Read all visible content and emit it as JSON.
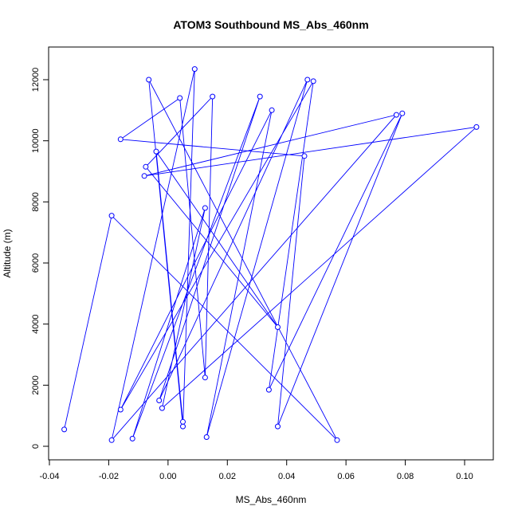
{
  "chart_data": {
    "type": "line",
    "title": "ATOM3 Southbound MS_Abs_460nm",
    "xlabel": "MS_Abs_460nm",
    "ylabel": "Altitude (m)",
    "xlim": [
      -0.04,
      0.1
    ],
    "ylim": [
      0,
      12000
    ],
    "x_ticks": [
      -0.04,
      -0.02,
      0.0,
      0.02,
      0.04,
      0.06,
      0.08,
      0.1
    ],
    "x_tick_labels": [
      "-0.04",
      "-0.02",
      "0.00",
      "0.02",
      "0.04",
      "0.06",
      "0.08",
      "0.10"
    ],
    "y_ticks": [
      0,
      2000,
      4000,
      6000,
      8000,
      10000,
      12000
    ],
    "y_tick_labels": [
      "0",
      "2000",
      "4000",
      "6000",
      "8000",
      "10000",
      "12000"
    ],
    "grid": false,
    "legend": "none",
    "series_color": "#0000ff",
    "marker": "open-circle",
    "points": [
      {
        "x": -0.035,
        "y": 550
      },
      {
        "x": -0.019,
        "y": 7550
      },
      {
        "x": 0.057,
        "y": 200
      },
      {
        "x": -0.0065,
        "y": 12000
      },
      {
        "x": 0.005,
        "y": 650
      },
      {
        "x": 0.009,
        "y": 12350
      },
      {
        "x": -0.019,
        "y": 200
      },
      {
        "x": 0.077,
        "y": 10850
      },
      {
        "x": -0.008,
        "y": 8850
      },
      {
        "x": 0.104,
        "y": 10450
      },
      {
        "x": -0.002,
        "y": 1250
      },
      {
        "x": 0.0125,
        "y": 7800
      },
      {
        "x": -0.012,
        "y": 250
      },
      {
        "x": 0.031,
        "y": 11450
      },
      {
        "x": -0.003,
        "y": 1500
      },
      {
        "x": 0.047,
        "y": 12000
      },
      {
        "x": 0.013,
        "y": 300
      },
      {
        "x": 0.035,
        "y": 11000
      },
      {
        "x": -0.016,
        "y": 1200
      },
      {
        "x": 0.049,
        "y": 11950
      },
      {
        "x": 0.034,
        "y": 1850
      },
      {
        "x": 0.079,
        "y": 10900
      },
      {
        "x": 0.037,
        "y": 650
      },
      {
        "x": 0.046,
        "y": 9500
      },
      {
        "x": -0.016,
        "y": 10050
      },
      {
        "x": 0.004,
        "y": 11400
      },
      {
        "x": 0.0125,
        "y": 2250
      },
      {
        "x": 0.015,
        "y": 11450
      },
      {
        "x": -0.0075,
        "y": 9150
      },
      {
        "x": 0.037,
        "y": 3900
      },
      {
        "x": -0.004,
        "y": 9650
      },
      {
        "x": 0.005,
        "y": 800
      }
    ]
  }
}
